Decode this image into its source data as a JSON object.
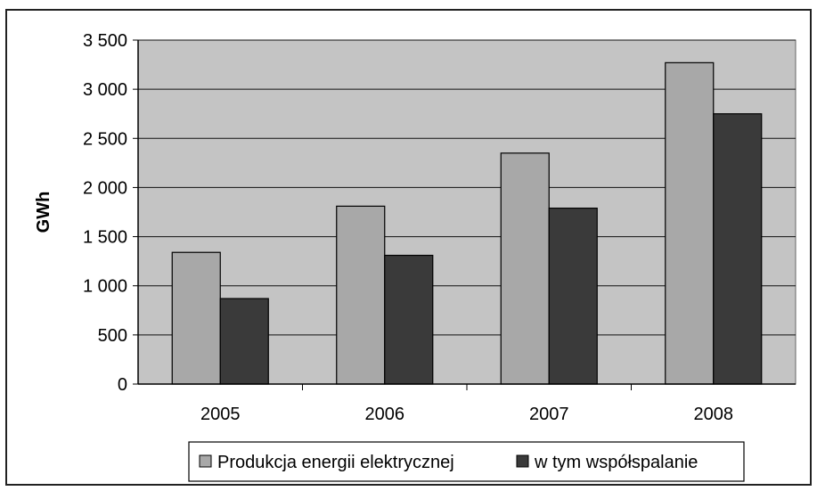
{
  "chart_data": {
    "type": "bar",
    "categories": [
      "2005",
      "2006",
      "2007",
      "2008"
    ],
    "series": [
      {
        "name": "Produkcja energii elektrycznej",
        "values": [
          1340,
          1810,
          2350,
          3270
        ],
        "color": "#a8a8a8"
      },
      {
        "name": "w tym współspalanie",
        "values": [
          870,
          1310,
          1790,
          2750
        ],
        "color": "#3a3a3a"
      }
    ],
    "ylabel": "GWh",
    "ylim": [
      0,
      3500
    ],
    "yticks": [
      0,
      500,
      1000,
      1500,
      2000,
      2500,
      3000,
      3500
    ],
    "ytick_labels": [
      "0",
      "500",
      "1 000",
      "1 500",
      "2 000",
      "2 500",
      "3 000",
      "3 500"
    ],
    "grid": true,
    "plot_background": "#c4c4c4",
    "legend_position": "bottom"
  }
}
